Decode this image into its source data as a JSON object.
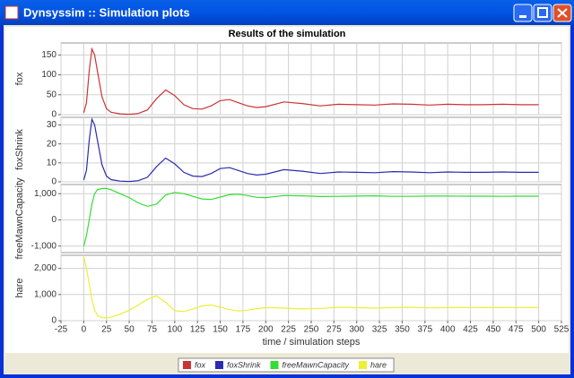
{
  "window": {
    "title": "Dynsyssim :: Simulation plots"
  },
  "chart_data": {
    "type": "line",
    "title": "Results of the simulation",
    "xlabel": "time / simulation steps",
    "grid": true,
    "legend": "bottom",
    "xlim": [
      -25,
      525
    ],
    "xticks": [
      -25,
      0,
      25,
      50,
      75,
      100,
      125,
      150,
      175,
      200,
      225,
      250,
      275,
      300,
      325,
      350,
      375,
      400,
      425,
      450,
      475,
      500,
      525
    ],
    "x": [
      0,
      3,
      6,
      9,
      12,
      15,
      20,
      25,
      30,
      40,
      50,
      60,
      70,
      80,
      90,
      100,
      110,
      120,
      130,
      140,
      150,
      160,
      170,
      180,
      190,
      200,
      220,
      240,
      260,
      280,
      300,
      320,
      340,
      360,
      380,
      400,
      420,
      440,
      460,
      480,
      500
    ],
    "series": [
      {
        "name": "fox",
        "ylabel": "fox",
        "color": "#cc3333",
        "ylim": [
          0,
          180
        ],
        "yticks": [
          0,
          50,
          100,
          150
        ],
        "values": [
          5,
          30,
          110,
          165,
          150,
          110,
          45,
          15,
          6,
          2,
          1,
          3,
          12,
          40,
          62,
          48,
          25,
          15,
          14,
          22,
          35,
          38,
          30,
          22,
          18,
          20,
          32,
          28,
          22,
          26,
          25,
          24,
          27,
          26,
          24,
          26,
          25,
          25,
          26,
          25,
          25
        ]
      },
      {
        "name": "foxShrink",
        "ylabel": "foxShrink",
        "color": "#2b2bb0",
        "ylim": [
          0,
          34
        ],
        "yticks": [
          0,
          10,
          20,
          30
        ],
        "values": [
          1,
          6,
          22,
          33,
          30,
          22,
          9,
          3,
          1.2,
          0.4,
          0.2,
          0.6,
          2.4,
          8,
          12.5,
          9.5,
          5,
          3,
          2.8,
          4.4,
          7,
          7.5,
          6,
          4.4,
          3.6,
          4,
          6.4,
          5.6,
          4.4,
          5.2,
          5,
          4.8,
          5.4,
          5.2,
          4.8,
          5.2,
          5,
          5,
          5.2,
          5,
          5
        ]
      },
      {
        "name": "freeMawnCapacity",
        "ylabel": "freeMawnCapacity",
        "color": "#33dd33",
        "ylim": [
          -1250,
          1350
        ],
        "yticks": [
          {
            "value": -1000,
            "label": "-1,000"
          },
          0,
          {
            "value": 1000,
            "label": "1,000"
          }
        ],
        "values": [
          -1000,
          -600,
          0,
          600,
          1000,
          1150,
          1200,
          1200,
          1150,
          1000,
          850,
          650,
          520,
          600,
          950,
          1050,
          1000,
          900,
          800,
          780,
          870,
          960,
          980,
          930,
          860,
          850,
          930,
          920,
          890,
          900,
          910,
          920,
          900,
          900,
          910,
          910,
          905,
          905,
          900,
          905,
          905
        ]
      },
      {
        "name": "hare",
        "ylabel": "hare",
        "color": "#eeee33",
        "ylim": [
          0,
          2500
        ],
        "yticks": [
          0,
          {
            "value": 1000,
            "label": "1,000"
          },
          {
            "value": 2000,
            "label": "2,000"
          }
        ],
        "values": [
          2450,
          2000,
          1400,
          800,
          400,
          200,
          120,
          100,
          140,
          250,
          400,
          600,
          820,
          950,
          700,
          380,
          350,
          450,
          560,
          600,
          520,
          420,
          370,
          400,
          460,
          500,
          480,
          450,
          470,
          510,
          500,
          480,
          500,
          510,
          490,
          500,
          505,
          500,
          500,
          505,
          500
        ]
      }
    ]
  }
}
